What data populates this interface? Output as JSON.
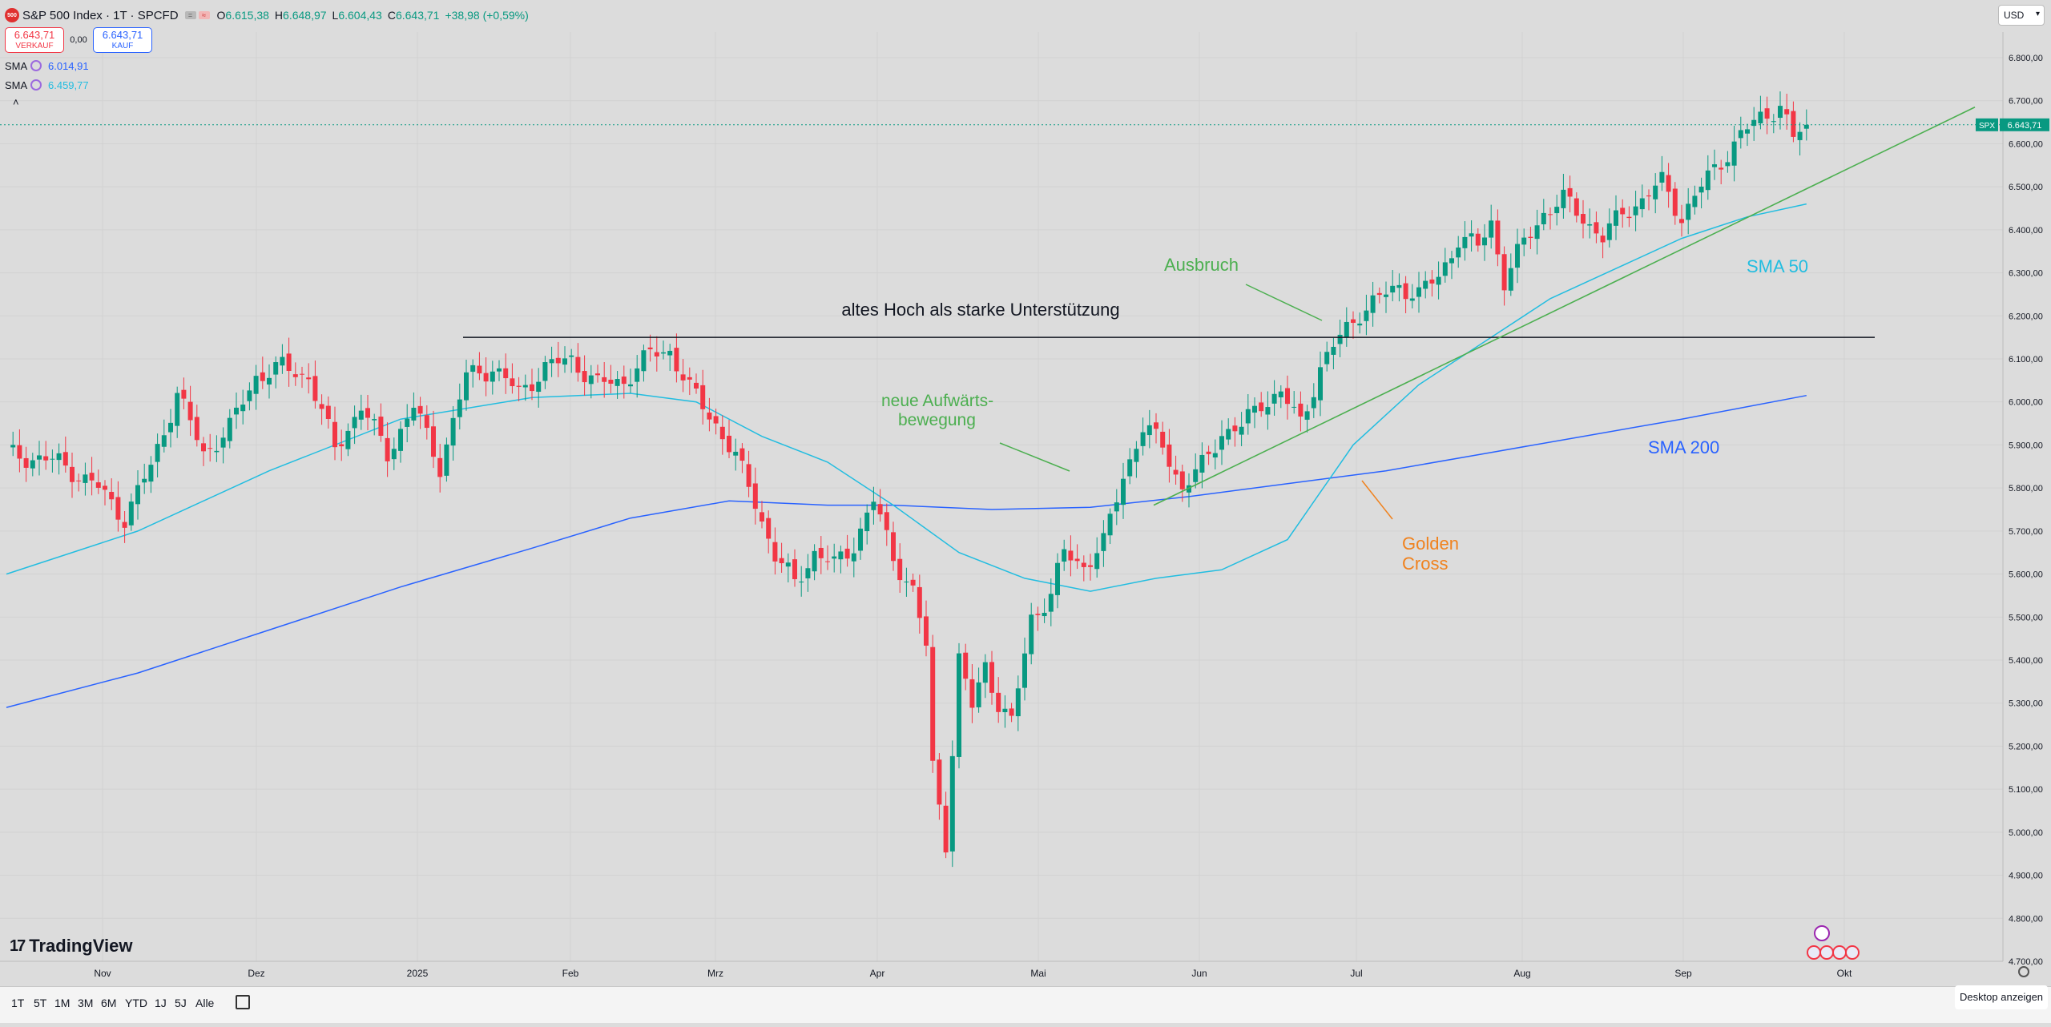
{
  "symbol": {
    "logo_text": "500",
    "title": "S&P 500 Index · 1T · SPCFD",
    "ohlc": {
      "o_label": "O",
      "o": "6.615,38",
      "h_label": "H",
      "h": "6.648,97",
      "l_label": "L",
      "l": "6.604,43",
      "c_label": "C",
      "c": "6.643,71",
      "change": "+38,98 (+0,59%)"
    }
  },
  "trade": {
    "sell_price": "6.643,71",
    "sell_label": "VERKAUF",
    "spread": "0,00",
    "buy_price": "6.643,71",
    "buy_label": "KAUF"
  },
  "indicators": [
    {
      "name": "SMA",
      "value": "6.014,91",
      "color": "#2962ff"
    },
    {
      "name": "SMA",
      "value": "6.459,77",
      "color": "#22bde0"
    }
  ],
  "collapse_glyph": "˄",
  "currency": "USD",
  "last_price_tag": {
    "symbol": "SPX",
    "price": "6.643,71"
  },
  "brand": "TradingView",
  "timeframes": [
    "1T",
    "5T",
    "1M",
    "3M",
    "6M",
    "YTD",
    "1J",
    "5J",
    "Alle"
  ],
  "desktop_button": "Desktop anzeigen",
  "chart_data": {
    "type": "candlestick",
    "x_tick_labels": [
      "Nov",
      "Dez",
      "2025",
      "Feb",
      "Mrz",
      "Apr",
      "Mai",
      "Jun",
      "Jul",
      "Aug",
      "Sep",
      "Okt"
    ],
    "y_tick_labels": [
      "6.800,00",
      "6.700,00",
      "6.600,00",
      "6.500,00",
      "6.400,00",
      "6.300,00",
      "6.200,00",
      "6.100,00",
      "6.000,00",
      "5.900,00",
      "5.800,00",
      "5.700,00",
      "5.600,00",
      "5.500,00",
      "5.400,00",
      "5.300,00",
      "5.200,00",
      "5.100,00",
      "5.000,00",
      "4.900,00",
      "4.800,00",
      "4.700,00"
    ],
    "ylim": [
      4700,
      6800
    ],
    "colors": {
      "up": "#089981",
      "down": "#f23645",
      "sma50": "#22bde0",
      "sma200": "#2962ff",
      "trend": "#4caf50"
    },
    "annotations": {
      "support": "altes Hoch als starke Unterstützung",
      "breakout": "Ausbruch",
      "new_up_1": "neue Aufwärts-",
      "new_up_2": "bewegung",
      "golden_1": "Golden",
      "golden_2": "Cross",
      "sma50_label": "SMA 50",
      "sma200_label": "SMA 200"
    },
    "support_level": 6150,
    "trendline": [
      [
        0.3,
        5780
      ],
      [
        0.6,
        6690
      ]
    ],
    "anchors": [
      [
        0,
        5880
      ],
      [
        8,
        5860
      ],
      [
        14,
        5800
      ],
      [
        18,
        5730
      ],
      [
        22,
        5850
      ],
      [
        26,
        6020
      ],
      [
        30,
        5880
      ],
      [
        34,
        5940
      ],
      [
        38,
        6060
      ],
      [
        42,
        6080
      ],
      [
        46,
        6060
      ],
      [
        50,
        5890
      ],
      [
        54,
        5990
      ],
      [
        58,
        5880
      ],
      [
        62,
        5990
      ],
      [
        66,
        5850
      ],
      [
        70,
        6060
      ],
      [
        74,
        6080
      ],
      [
        78,
        6020
      ],
      [
        82,
        6080
      ],
      [
        86,
        6100
      ],
      [
        90,
        6040
      ],
      [
        94,
        6050
      ],
      [
        98,
        6110
      ],
      [
        101,
        6120
      ],
      [
        104,
        6030
      ],
      [
        108,
        5950
      ],
      [
        111,
        5870
      ],
      [
        114,
        5770
      ],
      [
        117,
        5640
      ],
      [
        120,
        5580
      ],
      [
        123,
        5650
      ],
      [
        126,
        5620
      ],
      [
        129,
        5670
      ],
      [
        132,
        5770
      ],
      [
        135,
        5640
      ],
      [
        138,
        5560
      ],
      [
        140,
        5430
      ],
      [
        141,
        5150
      ],
      [
        143,
        4980
      ],
      [
        145,
        5400
      ],
      [
        147,
        5290
      ],
      [
        149,
        5390
      ],
      [
        151,
        5300
      ],
      [
        153,
        5250
      ],
      [
        156,
        5500
      ],
      [
        159,
        5550
      ],
      [
        161,
        5650
      ],
      [
        164,
        5620
      ],
      [
        167,
        5670
      ],
      [
        170,
        5830
      ],
      [
        173,
        5940
      ],
      [
        176,
        5900
      ],
      [
        179,
        5800
      ],
      [
        182,
        5850
      ],
      [
        185,
        5930
      ],
      [
        188,
        5940
      ],
      [
        191,
        6000
      ],
      [
        194,
        6020
      ],
      [
        197,
        5950
      ],
      [
        200,
        6080
      ],
      [
        203,
        6150
      ],
      [
        206,
        6210
      ],
      [
        209,
        6240
      ],
      [
        212,
        6270
      ],
      [
        215,
        6250
      ],
      [
        218,
        6290
      ],
      [
        221,
        6380
      ],
      [
        224,
        6360
      ],
      [
        226,
        6420
      ],
      [
        228,
        6280
      ],
      [
        231,
        6370
      ],
      [
        234,
        6440
      ],
      [
        237,
        6470
      ],
      [
        240,
        6430
      ],
      [
        243,
        6380
      ],
      [
        246,
        6440
      ],
      [
        249,
        6470
      ],
      [
        252,
        6510
      ],
      [
        255,
        6430
      ],
      [
        258,
        6500
      ],
      [
        261,
        6560
      ],
      [
        264,
        6620
      ],
      [
        267,
        6660
      ],
      [
        270,
        6690
      ],
      [
        272,
        6610
      ],
      [
        274,
        6644
      ]
    ],
    "sma50_points": [
      [
        0,
        5600
      ],
      [
        20,
        5700
      ],
      [
        40,
        5840
      ],
      [
        60,
        5960
      ],
      [
        80,
        6010
      ],
      [
        95,
        6020
      ],
      [
        105,
        6000
      ],
      [
        115,
        5920
      ],
      [
        125,
        5860
      ],
      [
        135,
        5760
      ],
      [
        145,
        5650
      ],
      [
        155,
        5590
      ],
      [
        165,
        5560
      ],
      [
        175,
        5590
      ],
      [
        185,
        5610
      ],
      [
        195,
        5680
      ],
      [
        205,
        5900
      ],
      [
        215,
        6040
      ],
      [
        225,
        6140
      ],
      [
        235,
        6240
      ],
      [
        245,
        6310
      ],
      [
        255,
        6380
      ],
      [
        265,
        6430
      ],
      [
        274,
        6460
      ]
    ],
    "sma200_points": [
      [
        0,
        5290
      ],
      [
        20,
        5370
      ],
      [
        40,
        5470
      ],
      [
        60,
        5570
      ],
      [
        80,
        5660
      ],
      [
        95,
        5730
      ],
      [
        110,
        5770
      ],
      [
        125,
        5760
      ],
      [
        135,
        5760
      ],
      [
        150,
        5750
      ],
      [
        165,
        5755
      ],
      [
        180,
        5780
      ],
      [
        195,
        5810
      ],
      [
        210,
        5840
      ],
      [
        225,
        5880
      ],
      [
        240,
        5920
      ],
      [
        255,
        5960
      ],
      [
        274,
        6015
      ]
    ]
  }
}
